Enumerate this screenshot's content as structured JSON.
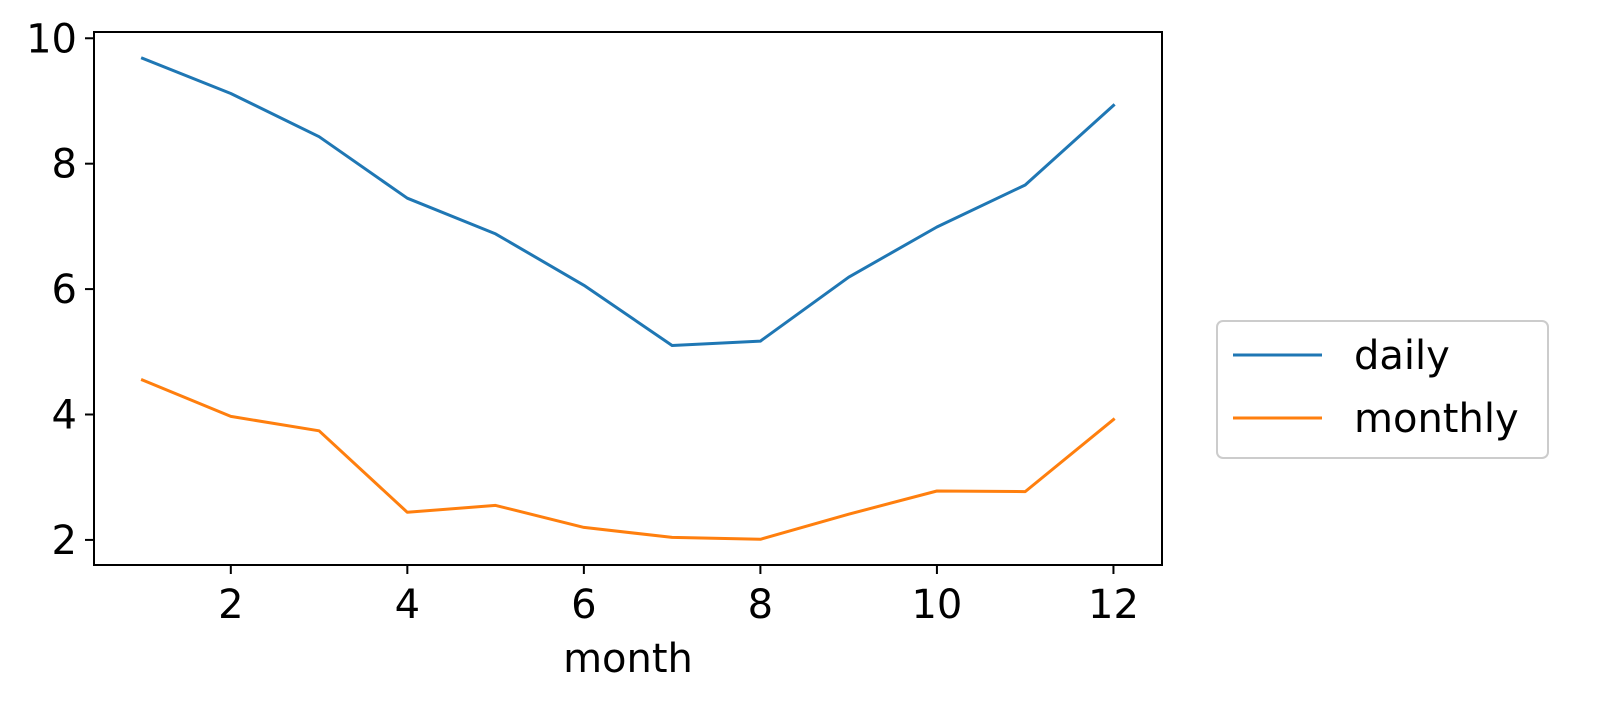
{
  "chart_data": {
    "type": "line",
    "title": "",
    "xlabel": "month",
    "ylabel": "",
    "xlim": [
      0.45,
      12.55
    ],
    "ylim": [
      1.6,
      10.1
    ],
    "xticks": [
      2,
      4,
      6,
      8,
      10,
      12
    ],
    "yticks": [
      2,
      4,
      6,
      8,
      10
    ],
    "grid": false,
    "legend_position": "center-right-outside",
    "x": [
      1,
      2,
      3,
      4,
      5,
      6,
      7,
      8,
      9,
      10,
      11,
      12
    ],
    "series": [
      {
        "name": "daily",
        "color": "#1f77b4",
        "values": [
          9.68,
          9.12,
          8.43,
          7.45,
          6.88,
          6.06,
          5.1,
          5.17,
          6.19,
          6.99,
          7.66,
          8.93
        ]
      },
      {
        "name": "monthly",
        "color": "#ff7f0e",
        "values": [
          4.55,
          3.97,
          3.74,
          2.44,
          2.55,
          2.2,
          2.04,
          2.01,
          2.41,
          2.78,
          2.77,
          3.92
        ]
      }
    ]
  }
}
